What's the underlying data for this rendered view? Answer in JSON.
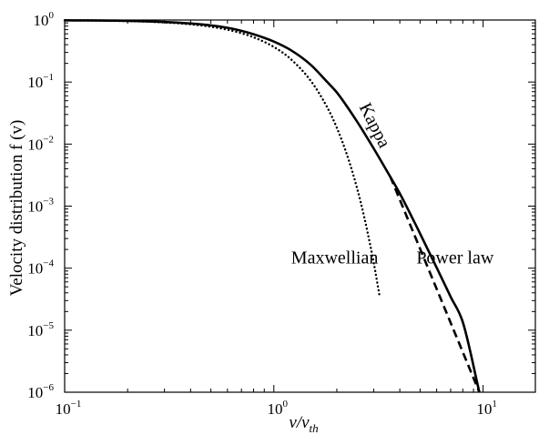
{
  "chart_data": {
    "type": "line",
    "title": "",
    "xlabel": {
      "main": "v/v",
      "sub": "th"
    },
    "ylabel": "Velocity distribution  f (v)",
    "x_scale": "log",
    "y_scale": "log",
    "xlim": [
      0.1,
      17.78
    ],
    "ylim": [
      1e-06,
      1
    ],
    "grid": false,
    "x_ticks": [
      {
        "value": 0.1,
        "base": "10",
        "exp": "−1"
      },
      {
        "value": 1,
        "base": "10",
        "exp": "0"
      },
      {
        "value": 10,
        "base": "10",
        "exp": "1"
      }
    ],
    "y_ticks": [
      {
        "value": 1,
        "base": "10",
        "exp": "0"
      },
      {
        "value": 0.1,
        "base": "10",
        "exp": "−1"
      },
      {
        "value": 0.01,
        "base": "10",
        "exp": "−2"
      },
      {
        "value": 0.001,
        "base": "10",
        "exp": "−3"
      },
      {
        "value": 0.0001,
        "base": "10",
        "exp": "−4"
      },
      {
        "value": 1e-05,
        "base": "10",
        "exp": "−5"
      },
      {
        "value": 1e-06,
        "base": "10",
        "exp": "−6"
      }
    ],
    "series": [
      {
        "name": "Kappa",
        "style": "solid",
        "color": "#000000",
        "x": [
          0.1,
          0.2,
          0.3,
          0.4,
          0.5,
          0.6,
          0.7,
          0.8,
          1.0,
          1.2,
          1.5,
          1.8,
          2.0,
          2.5,
          3.0,
          3.5,
          4.0,
          5.0,
          6.0,
          7.0,
          8.0,
          9.6
        ],
        "y": [
          0.99,
          0.97,
          0.93,
          0.88,
          0.82,
          0.75,
          0.67,
          0.59,
          0.45,
          0.33,
          0.19,
          0.1,
          0.068,
          0.023,
          0.0085,
          0.0035,
          0.0016,
          0.00036,
          0.000102,
          3.45e-05,
          1.35e-05,
          1e-06
        ]
      },
      {
        "name": "Maxwellian",
        "style": "dotted",
        "color": "#000000",
        "x": [
          0.1,
          0.2,
          0.3,
          0.4,
          0.5,
          0.6,
          0.7,
          0.8,
          1.0,
          1.2,
          1.5,
          1.8,
          2.0,
          2.2,
          2.4,
          2.6,
          2.8,
          3.0,
          3.2
        ],
        "y": [
          0.99,
          0.96,
          0.914,
          0.852,
          0.779,
          0.698,
          0.613,
          0.527,
          0.368,
          0.237,
          0.105,
          0.039,
          0.0183,
          0.0079,
          0.00315,
          0.00116,
          0.00039,
          0.000123,
          3.57e-05
        ]
      },
      {
        "name": "Power law",
        "style": "dashed",
        "color": "#000000",
        "x": [
          3.6,
          9.6
        ],
        "y": [
          0.003,
          1e-06
        ]
      }
    ],
    "annotations": [
      {
        "text": "Kappa",
        "x": 2.55,
        "y": 0.04,
        "rotation_deg": 63
      },
      {
        "text": "Maxwellian",
        "x": 1.21,
        "y": 0.00012
      },
      {
        "text": "Power law",
        "x": 4.8,
        "y": 0.00012
      }
    ]
  }
}
